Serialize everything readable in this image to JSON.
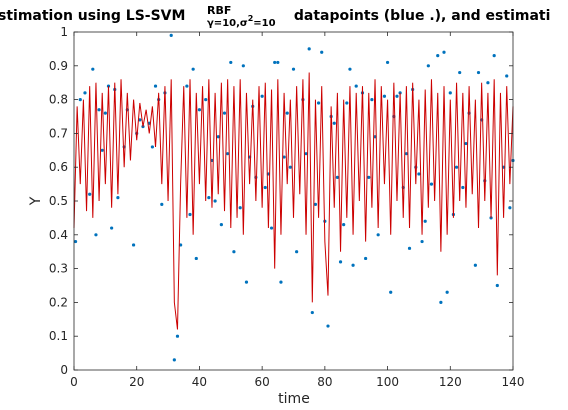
{
  "chart_data": {
    "type": "line",
    "title_parts": [
      "stimation using  LS-SVM",
      "RBF",
      "γ=10,σ",
      "2",
      "=10",
      " datapoints (blue .), and estimati"
    ],
    "xlabel": "time",
    "ylabel": "Y",
    "xlim": [
      0,
      140
    ],
    "ylim": [
      0,
      1
    ],
    "xticks": [
      0,
      20,
      40,
      60,
      80,
      100,
      120,
      140
    ],
    "yticks": [
      0,
      0.1,
      0.2,
      0.3,
      0.4,
      0.5,
      0.6,
      0.7,
      0.8,
      0.9,
      1
    ],
    "grid": false,
    "series": [
      {
        "mode": "markers",
        "color": "#0072bd",
        "x": [
          0.5,
          2,
          3.5,
          5,
          6,
          7,
          8,
          9,
          10,
          11,
          12,
          13,
          14,
          16,
          17,
          19,
          20,
          21,
          22,
          24,
          25,
          26,
          27,
          28,
          29,
          31,
          32,
          33,
          34,
          36,
          37,
          38,
          39,
          40,
          42,
          43,
          44,
          45,
          46,
          47,
          48,
          49,
          50,
          51,
          53,
          54,
          55,
          56,
          57,
          58,
          60,
          61,
          62,
          63,
          64,
          65,
          66,
          67,
          68,
          69,
          70,
          71,
          73,
          74,
          75,
          76,
          77,
          78,
          79,
          80,
          81,
          82,
          83,
          84,
          85,
          86,
          87,
          88,
          89,
          90,
          92,
          93,
          94,
          95,
          96,
          97,
          99,
          100,
          101,
          102,
          103,
          104,
          105,
          106,
          107,
          108,
          109,
          110,
          111,
          112,
          113,
          114,
          116,
          117,
          118,
          119,
          120,
          121,
          122,
          123,
          124,
          125,
          126,
          128,
          129,
          130,
          131,
          132,
          133,
          134,
          135,
          137,
          138,
          139,
          140
        ],
        "values": [
          0.38,
          0.8,
          0.82,
          0.52,
          0.89,
          0.4,
          0.77,
          0.65,
          0.76,
          0.84,
          0.42,
          0.83,
          0.51,
          0.66,
          0.77,
          0.37,
          0.7,
          0.74,
          0.72,
          0.73,
          0.66,
          0.84,
          0.8,
          0.49,
          0.82,
          0.99,
          0.03,
          0.1,
          0.37,
          0.84,
          0.46,
          0.89,
          0.33,
          0.77,
          0.8,
          0.51,
          0.62,
          0.5,
          0.69,
          0.43,
          0.76,
          0.64,
          0.91,
          0.35,
          0.48,
          0.9,
          0.26,
          0.63,
          0.78,
          0.57,
          0.81,
          0.54,
          0.58,
          0.42,
          0.91,
          0.91,
          0.26,
          0.63,
          0.76,
          0.6,
          0.89,
          0.35,
          0.8,
          0.64,
          0.95,
          0.17,
          0.49,
          0.79,
          0.94,
          0.44,
          0.13,
          0.75,
          0.73,
          0.57,
          0.32,
          0.43,
          0.79,
          0.89,
          0.31,
          0.84,
          0.82,
          0.33,
          0.57,
          0.8,
          0.69,
          0.4,
          0.81,
          0.91,
          0.23,
          0.75,
          0.81,
          0.82,
          0.54,
          0.64,
          0.36,
          0.83,
          0.6,
          0.58,
          0.38,
          0.44,
          0.9,
          0.55,
          0.93,
          0.2,
          0.94,
          0.23,
          0.82,
          0.46,
          0.6,
          0.88,
          0.54,
          0.67,
          0.76,
          0.31,
          0.88,
          0.74,
          0.56,
          0.85,
          0.45,
          0.93,
          0.25,
          0.6,
          0.87,
          0.48,
          0.62
        ]
      },
      {
        "mode": "lines",
        "color": "#cc0000",
        "x": [
          0,
          1,
          2,
          3,
          4,
          5,
          6,
          7,
          8,
          9,
          10,
          11,
          12,
          13,
          14,
          15,
          16,
          17,
          18,
          19,
          20,
          21,
          22,
          23,
          24,
          25,
          26,
          27,
          28,
          29,
          30,
          31,
          32,
          33,
          34,
          35,
          36,
          37,
          38,
          39,
          40,
          41,
          42,
          43,
          44,
          45,
          46,
          47,
          48,
          49,
          50,
          51,
          52,
          53,
          54,
          55,
          56,
          57,
          58,
          59,
          60,
          61,
          62,
          63,
          64,
          65,
          66,
          67,
          68,
          69,
          70,
          71,
          72,
          73,
          74,
          75,
          76,
          77,
          78,
          79,
          80,
          81,
          82,
          83,
          84,
          85,
          86,
          87,
          88,
          89,
          90,
          91,
          92,
          93,
          94,
          95,
          96,
          97,
          98,
          99,
          100,
          101,
          102,
          103,
          104,
          105,
          106,
          107,
          108,
          109,
          110,
          111,
          112,
          113,
          114,
          115,
          116,
          117,
          118,
          119,
          120,
          121,
          122,
          123,
          124,
          125,
          126,
          127,
          128,
          129,
          130,
          131,
          132,
          133,
          134,
          135,
          136,
          137,
          138,
          139,
          140
        ],
        "values": [
          0.42,
          0.78,
          0.55,
          0.8,
          0.47,
          0.84,
          0.45,
          0.85,
          0.5,
          0.82,
          0.55,
          0.84,
          0.48,
          0.85,
          0.52,
          0.86,
          0.6,
          0.82,
          0.62,
          0.8,
          0.68,
          0.79,
          0.72,
          0.77,
          0.7,
          0.78,
          0.66,
          0.82,
          0.55,
          0.84,
          0.5,
          0.86,
          0.2,
          0.12,
          0.55,
          0.84,
          0.45,
          0.86,
          0.4,
          0.82,
          0.55,
          0.84,
          0.5,
          0.86,
          0.48,
          0.82,
          0.52,
          0.85,
          0.47,
          0.86,
          0.42,
          0.84,
          0.45,
          0.86,
          0.4,
          0.82,
          0.55,
          0.8,
          0.5,
          0.84,
          0.48,
          0.85,
          0.42,
          0.83,
          0.3,
          0.86,
          0.4,
          0.82,
          0.55,
          0.8,
          0.45,
          0.84,
          0.52,
          0.86,
          0.4,
          0.88,
          0.2,
          0.8,
          0.45,
          0.84,
          0.38,
          0.22,
          0.78,
          0.48,
          0.82,
          0.35,
          0.8,
          0.45,
          0.84,
          0.4,
          0.82,
          0.5,
          0.84,
          0.38,
          0.82,
          0.48,
          0.86,
          0.42,
          0.84,
          0.55,
          0.8,
          0.4,
          0.85,
          0.5,
          0.82,
          0.45,
          0.84,
          0.42,
          0.85,
          0.55,
          0.8,
          0.4,
          0.83,
          0.48,
          0.86,
          0.5,
          0.82,
          0.35,
          0.84,
          0.4,
          0.8,
          0.45,
          0.85,
          0.5,
          0.82,
          0.48,
          0.84,
          0.52,
          0.8,
          0.42,
          0.85,
          0.5,
          0.82,
          0.45,
          0.86,
          0.28,
          0.82,
          0.45,
          0.84,
          0.55,
          0.78
        ]
      }
    ]
  }
}
